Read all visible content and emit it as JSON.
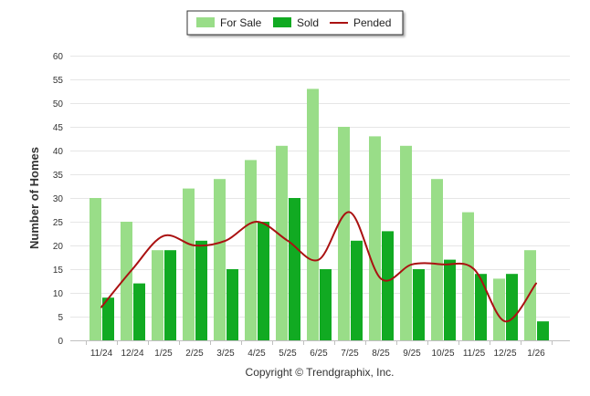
{
  "chart_data": {
    "type": "bar",
    "title": "",
    "xlabel": "",
    "ylabel": "Number of Homes",
    "ylim": [
      0,
      60
    ],
    "yticks": [
      0,
      5,
      10,
      15,
      20,
      25,
      30,
      35,
      40,
      45,
      50,
      55,
      60
    ],
    "grid": true,
    "legend_position": "top-center",
    "categories": [
      "11/24",
      "12/24",
      "1/25",
      "2/25",
      "3/25",
      "4/25",
      "5/25",
      "6/25",
      "7/25",
      "8/25",
      "9/25",
      "10/25",
      "11/25",
      "12/25",
      "1/26"
    ],
    "series": [
      {
        "name": "For Sale",
        "kind": "bar",
        "color": "#99dd88",
        "values": [
          30,
          25,
          19,
          32,
          34,
          38,
          41,
          53,
          45,
          43,
          41,
          34,
          27,
          13,
          19
        ]
      },
      {
        "name": "Sold",
        "kind": "bar",
        "color": "#11aa22",
        "values": [
          9,
          12,
          19,
          21,
          15,
          25,
          30,
          15,
          21,
          23,
          15,
          17,
          14,
          14,
          4
        ]
      },
      {
        "name": "Pended",
        "kind": "line",
        "color": "#aa1111",
        "values": [
          7,
          15,
          22,
          20,
          21,
          25,
          21,
          17,
          27,
          13,
          16,
          16,
          15,
          4,
          12
        ]
      }
    ],
    "credit": "Copyright © Trendgraphix, Inc."
  }
}
